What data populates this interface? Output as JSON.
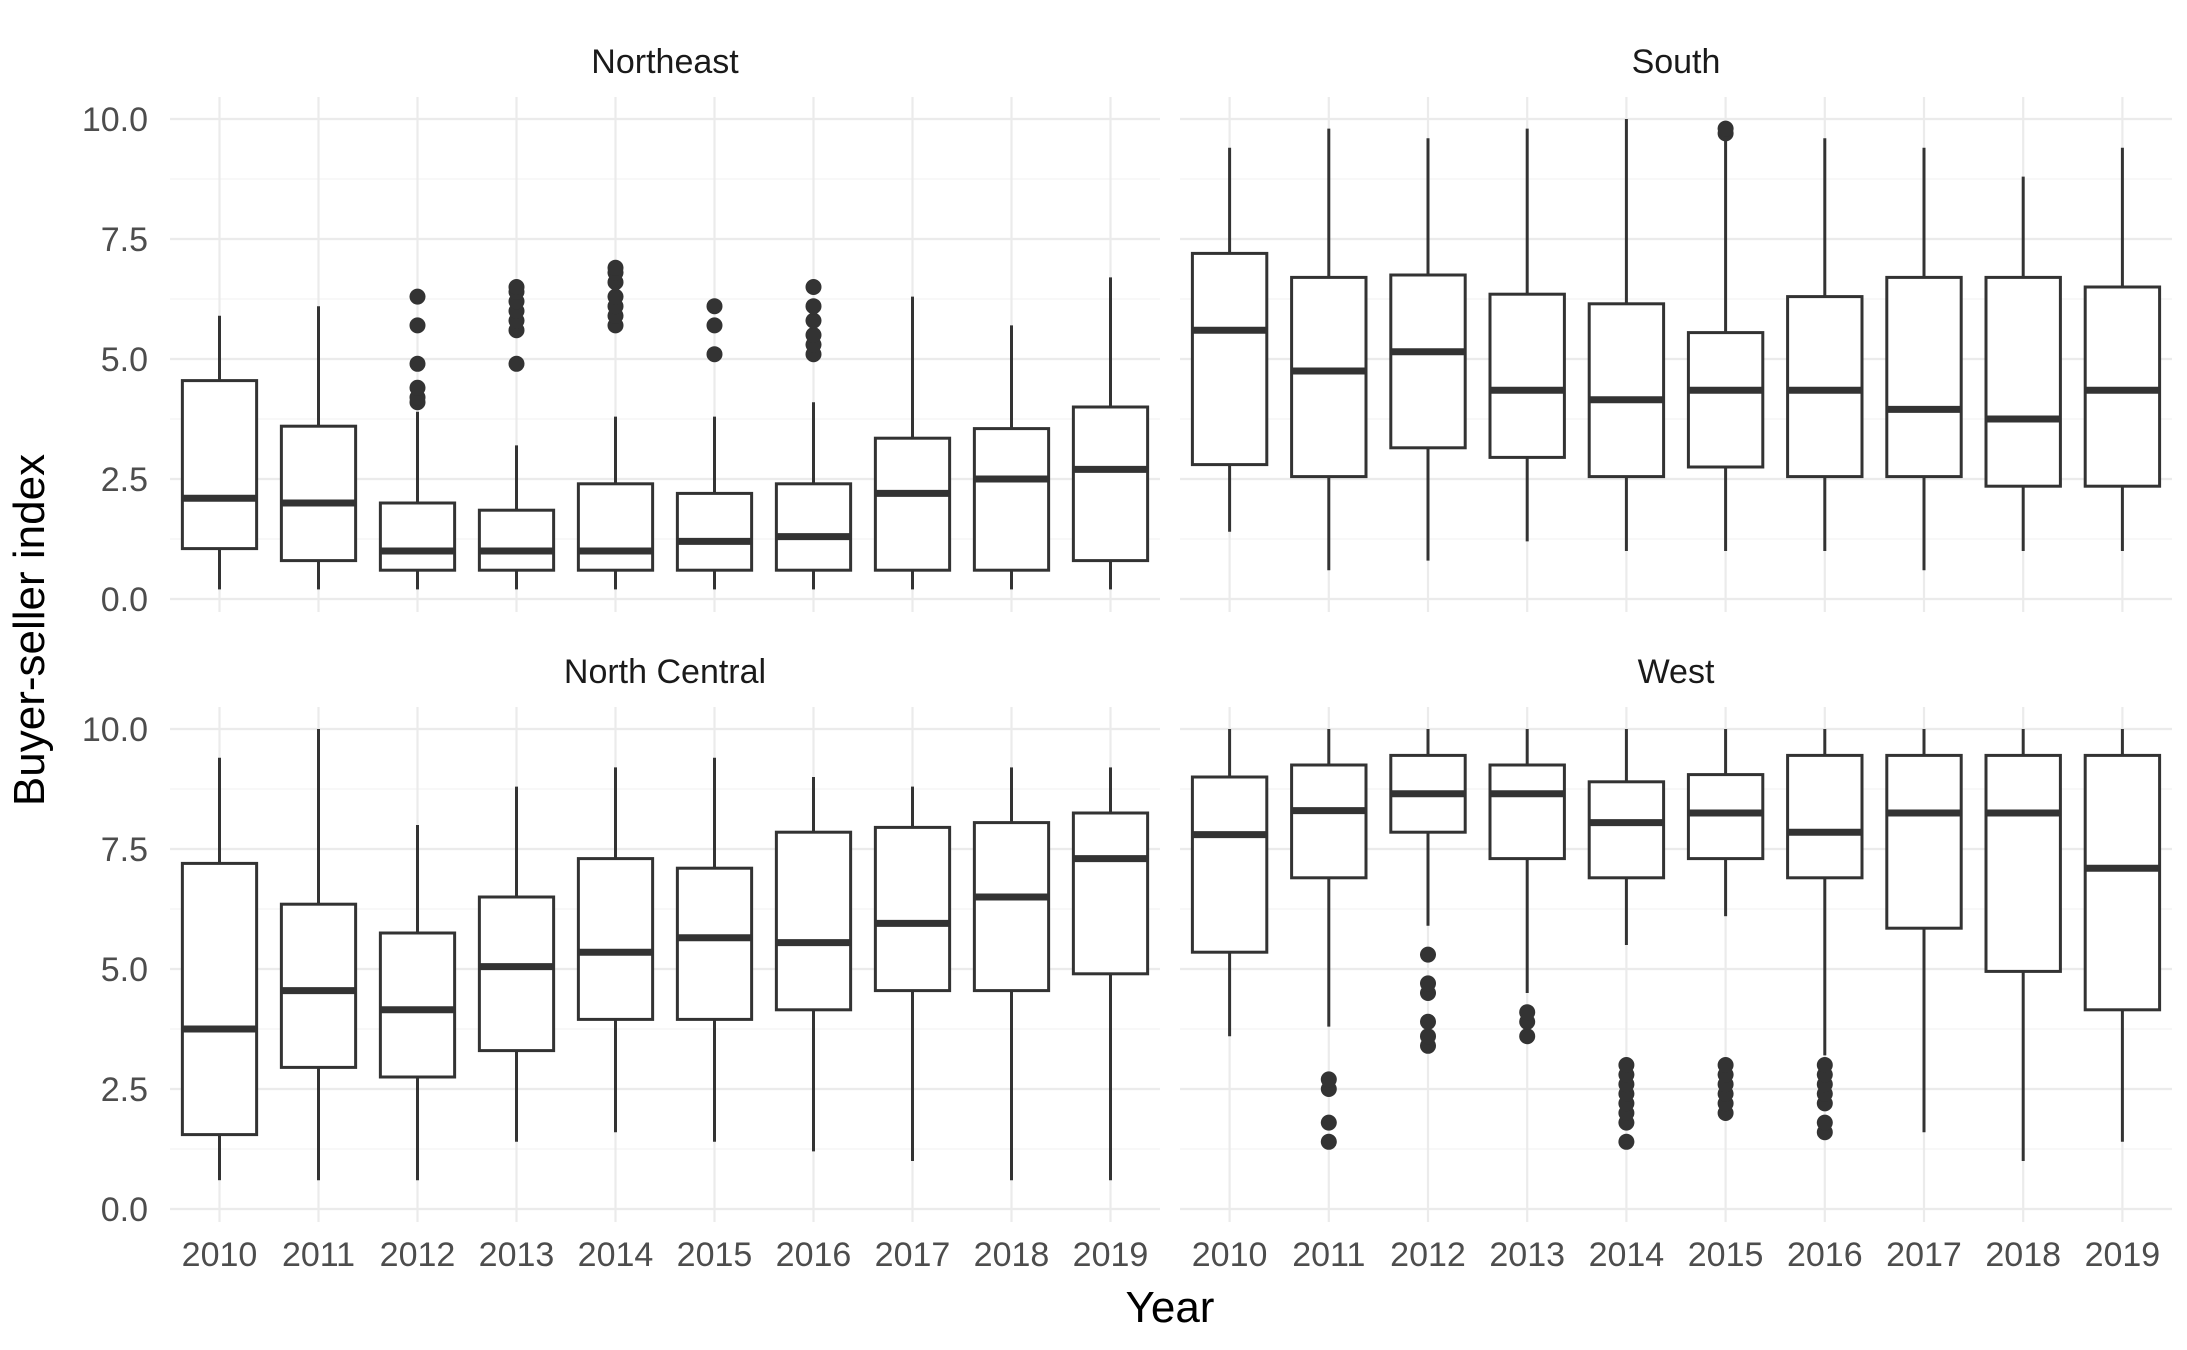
{
  "chart_data": {
    "type": "boxplot",
    "xlabel": "Year",
    "ylabel": "Buyer-seller index",
    "ylim": [
      0,
      10
    ],
    "y_ticks": [
      "0.0",
      "2.5",
      "5.0",
      "7.5",
      "10.0"
    ],
    "categories": [
      "2010",
      "2011",
      "2012",
      "2013",
      "2014",
      "2015",
      "2016",
      "2017",
      "2018",
      "2019"
    ],
    "grid": true,
    "panels": [
      {
        "name": "Northeast",
        "boxes": [
          {
            "year": "2010",
            "lower": 0.2,
            "q1": 1.05,
            "median": 2.1,
            "q3": 4.55,
            "upper": 5.9,
            "outliers": []
          },
          {
            "year": "2011",
            "lower": 0.2,
            "q1": 0.8,
            "median": 2.0,
            "q3": 3.6,
            "upper": 6.1,
            "outliers": []
          },
          {
            "year": "2012",
            "lower": 0.2,
            "q1": 0.6,
            "median": 1.0,
            "q3": 2.0,
            "upper": 3.9,
            "outliers": [
              4.1,
              4.2,
              4.4,
              4.9,
              5.7,
              6.3
            ]
          },
          {
            "year": "2013",
            "lower": 0.2,
            "q1": 0.6,
            "median": 1.0,
            "q3": 1.85,
            "upper": 3.2,
            "outliers": [
              4.9,
              5.6,
              5.8,
              6.0,
              6.2,
              6.4,
              6.5
            ]
          },
          {
            "year": "2014",
            "lower": 0.2,
            "q1": 0.6,
            "median": 1.0,
            "q3": 2.4,
            "upper": 3.8,
            "outliers": [
              5.7,
              5.9,
              6.1,
              6.3,
              6.6,
              6.8,
              6.9
            ]
          },
          {
            "year": "2015",
            "lower": 0.2,
            "q1": 0.6,
            "median": 1.2,
            "q3": 2.2,
            "upper": 3.8,
            "outliers": [
              5.1,
              5.7,
              6.1
            ]
          },
          {
            "year": "2016",
            "lower": 0.2,
            "q1": 0.6,
            "median": 1.3,
            "q3": 2.4,
            "upper": 4.1,
            "outliers": [
              5.1,
              5.3,
              5.5,
              5.8,
              6.1,
              6.5
            ]
          },
          {
            "year": "2017",
            "lower": 0.2,
            "q1": 0.6,
            "median": 2.2,
            "q3": 3.35,
            "upper": 6.3,
            "outliers": []
          },
          {
            "year": "2018",
            "lower": 0.2,
            "q1": 0.6,
            "median": 2.5,
            "q3": 3.55,
            "upper": 5.7,
            "outliers": []
          },
          {
            "year": "2019",
            "lower": 0.2,
            "q1": 0.8,
            "median": 2.7,
            "q3": 4.0,
            "upper": 6.7,
            "outliers": []
          }
        ]
      },
      {
        "name": "South",
        "boxes": [
          {
            "year": "2010",
            "lower": 1.4,
            "q1": 2.8,
            "median": 5.6,
            "q3": 7.2,
            "upper": 9.4,
            "outliers": []
          },
          {
            "year": "2011",
            "lower": 0.6,
            "q1": 2.55,
            "median": 4.75,
            "q3": 6.7,
            "upper": 9.8,
            "outliers": []
          },
          {
            "year": "2012",
            "lower": 0.8,
            "q1": 3.15,
            "median": 5.15,
            "q3": 6.75,
            "upper": 9.6,
            "outliers": []
          },
          {
            "year": "2013",
            "lower": 1.2,
            "q1": 2.95,
            "median": 4.35,
            "q3": 6.35,
            "upper": 9.8,
            "outliers": []
          },
          {
            "year": "2014",
            "lower": 1.0,
            "q1": 2.55,
            "median": 4.15,
            "q3": 6.15,
            "upper": 10.0,
            "outliers": []
          },
          {
            "year": "2015",
            "lower": 1.0,
            "q1": 2.75,
            "median": 4.35,
            "q3": 5.55,
            "upper": 9.6,
            "outliers": [
              9.7,
              9.8
            ]
          },
          {
            "year": "2016",
            "lower": 1.0,
            "q1": 2.55,
            "median": 4.35,
            "q3": 6.3,
            "upper": 9.6,
            "outliers": []
          },
          {
            "year": "2017",
            "lower": 0.6,
            "q1": 2.55,
            "median": 3.95,
            "q3": 6.7,
            "upper": 9.4,
            "outliers": []
          },
          {
            "year": "2018",
            "lower": 1.0,
            "q1": 2.35,
            "median": 3.75,
            "q3": 6.7,
            "upper": 8.8,
            "outliers": []
          },
          {
            "year": "2019",
            "lower": 1.0,
            "q1": 2.35,
            "median": 4.35,
            "q3": 6.5,
            "upper": 9.4,
            "outliers": []
          }
        ]
      },
      {
        "name": "North Central",
        "boxes": [
          {
            "year": "2010",
            "lower": 0.6,
            "q1": 1.55,
            "median": 3.75,
            "q3": 7.2,
            "upper": 9.4,
            "outliers": []
          },
          {
            "year": "2011",
            "lower": 0.6,
            "q1": 2.95,
            "median": 4.55,
            "q3": 6.35,
            "upper": 10.0,
            "outliers": []
          },
          {
            "year": "2012",
            "lower": 0.6,
            "q1": 2.75,
            "median": 4.15,
            "q3": 5.75,
            "upper": 8.0,
            "outliers": []
          },
          {
            "year": "2013",
            "lower": 1.4,
            "q1": 3.3,
            "median": 5.05,
            "q3": 6.5,
            "upper": 8.8,
            "outliers": []
          },
          {
            "year": "2014",
            "lower": 1.6,
            "q1": 3.95,
            "median": 5.35,
            "q3": 7.3,
            "upper": 9.2,
            "outliers": []
          },
          {
            "year": "2015",
            "lower": 1.4,
            "q1": 3.95,
            "median": 5.65,
            "q3": 7.1,
            "upper": 9.4,
            "outliers": []
          },
          {
            "year": "2016",
            "lower": 1.2,
            "q1": 4.15,
            "median": 5.55,
            "q3": 7.85,
            "upper": 9.0,
            "outliers": []
          },
          {
            "year": "2017",
            "lower": 1.0,
            "q1": 4.55,
            "median": 5.95,
            "q3": 7.95,
            "upper": 8.8,
            "outliers": []
          },
          {
            "year": "2018",
            "lower": 0.6,
            "q1": 4.55,
            "median": 6.5,
            "q3": 8.05,
            "upper": 9.2,
            "outliers": []
          },
          {
            "year": "2019",
            "lower": 0.6,
            "q1": 4.9,
            "median": 7.3,
            "q3": 8.25,
            "upper": 9.2,
            "outliers": []
          }
        ]
      },
      {
        "name": "West",
        "boxes": [
          {
            "year": "2010",
            "lower": 3.6,
            "q1": 5.35,
            "median": 7.8,
            "q3": 9.0,
            "upper": 10.0,
            "outliers": []
          },
          {
            "year": "2011",
            "lower": 3.8,
            "q1": 6.9,
            "median": 8.3,
            "q3": 9.25,
            "upper": 10.0,
            "outliers": [
              1.4,
              1.8,
              2.5,
              2.7
            ]
          },
          {
            "year": "2012",
            "lower": 5.9,
            "q1": 7.85,
            "median": 8.65,
            "q3": 9.45,
            "upper": 10.0,
            "outliers": [
              3.4,
              3.6,
              3.9,
              4.5,
              4.7,
              5.3
            ]
          },
          {
            "year": "2013",
            "lower": 4.5,
            "q1": 7.3,
            "median": 8.65,
            "q3": 9.25,
            "upper": 10.0,
            "outliers": [
              3.6,
              3.9,
              4.1
            ]
          },
          {
            "year": "2014",
            "lower": 5.5,
            "q1": 6.9,
            "median": 8.05,
            "q3": 8.9,
            "upper": 10.0,
            "outliers": [
              1.4,
              1.8,
              2.0,
              2.2,
              2.4,
              2.6,
              2.8,
              3.0
            ]
          },
          {
            "year": "2015",
            "lower": 6.1,
            "q1": 7.3,
            "median": 8.25,
            "q3": 9.05,
            "upper": 10.0,
            "outliers": [
              2.0,
              2.2,
              2.4,
              2.6,
              2.8,
              3.0
            ]
          },
          {
            "year": "2016",
            "lower": 3.2,
            "q1": 6.9,
            "median": 7.85,
            "q3": 9.45,
            "upper": 10.0,
            "outliers": [
              1.6,
              1.8,
              2.2,
              2.4,
              2.6,
              2.8,
              3.0
            ]
          },
          {
            "year": "2017",
            "lower": 1.6,
            "q1": 5.85,
            "median": 8.25,
            "q3": 9.45,
            "upper": 10.0,
            "outliers": []
          },
          {
            "year": "2018",
            "lower": 1.0,
            "q1": 4.95,
            "median": 8.25,
            "q3": 9.45,
            "upper": 10.0,
            "outliers": []
          },
          {
            "year": "2019",
            "lower": 1.4,
            "q1": 4.15,
            "median": 7.1,
            "q3": 9.45,
            "upper": 10.0,
            "outliers": []
          }
        ]
      }
    ]
  }
}
